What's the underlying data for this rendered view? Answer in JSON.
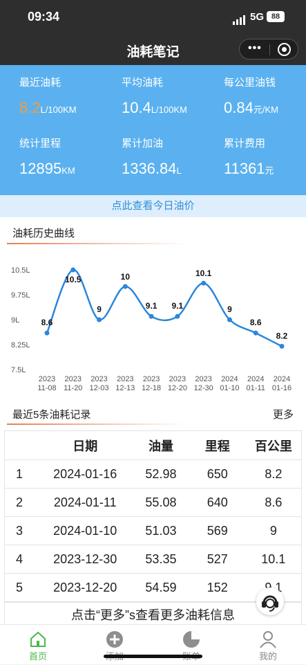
{
  "status_bar": {
    "time": "09:34",
    "network": "5G",
    "battery": "88"
  },
  "nav": {
    "title": "油耗笔记"
  },
  "stats": [
    {
      "label": "最近油耗",
      "value": "8.2",
      "unit": "L/100KM"
    },
    {
      "label": "平均油耗",
      "value": "10.4",
      "unit": "L/100KM"
    },
    {
      "label": "每公里油钱",
      "value": "0.84",
      "unit": "元/KM"
    },
    {
      "label": "统计里程",
      "value": "12895",
      "unit": "KM"
    },
    {
      "label": "累计加油",
      "value": "1336.84",
      "unit": "L"
    },
    {
      "label": "累计费用",
      "value": "11361",
      "unit": "元"
    }
  ],
  "price_link": "点此查看今日油价",
  "chart_section": {
    "title": "油耗历史曲线"
  },
  "chart_data": {
    "type": "line",
    "title": "",
    "xlabel": "",
    "ylabel": "",
    "categories": [
      [
        "2023",
        "11-08"
      ],
      [
        "2023",
        "11-20"
      ],
      [
        "2023",
        "12-03"
      ],
      [
        "2023",
        "12-13"
      ],
      [
        "2023",
        "12-18"
      ],
      [
        "2023",
        "12-20"
      ],
      [
        "2023",
        "12-30"
      ],
      [
        "2024",
        "01-10"
      ],
      [
        "2024",
        "01-11"
      ],
      [
        "2024",
        "01-16"
      ]
    ],
    "values": [
      8.6,
      10.5,
      9,
      10,
      9.1,
      9.1,
      10.1,
      9,
      8.6,
      8.2
    ],
    "y_ticks": [
      "10.5L",
      "9.75L",
      "9L",
      "8.25L",
      "7.5L"
    ],
    "ylim": [
      7.5,
      10.5
    ],
    "grid": false,
    "legend": "none",
    "color": "#2b87d9"
  },
  "records_section": {
    "title": "最近5条油耗记录",
    "more": "更多"
  },
  "table": {
    "headers": [
      "",
      "日期",
      "油量",
      "里程",
      "百公里"
    ],
    "rows": [
      [
        "1",
        "2024-01-16",
        "52.98",
        "650",
        "8.2"
      ],
      [
        "2",
        "2024-01-11",
        "55.08",
        "640",
        "8.6"
      ],
      [
        "3",
        "2024-01-10",
        "51.03",
        "569",
        "9"
      ],
      [
        "4",
        "2023-12-30",
        "53.35",
        "527",
        "10.1"
      ],
      [
        "5",
        "2023-12-20",
        "54.59",
        "152",
        "9.1"
      ]
    ]
  },
  "more_info": "点击“更多”s查看更多油耗信息",
  "tabs": [
    {
      "label": "首页",
      "icon": "home-icon",
      "active": true
    },
    {
      "label": "添加",
      "icon": "add-icon",
      "active": false
    },
    {
      "label": "账单",
      "icon": "pie-chart-icon",
      "active": false
    },
    {
      "label": "我的",
      "icon": "user-icon",
      "active": false
    }
  ],
  "colors": {
    "header": "#2e2e2e",
    "stats_bg": "#5bb1ef",
    "accent": "#f39c3c",
    "line": "#2b87d9",
    "tab_active": "#4bb84b"
  }
}
